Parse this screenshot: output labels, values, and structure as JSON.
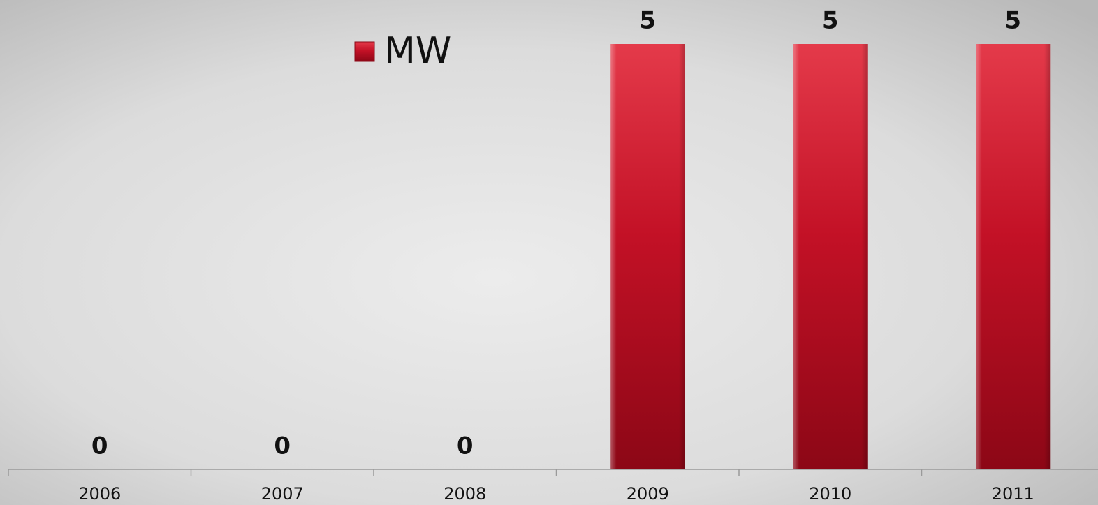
{
  "chart_data": {
    "type": "bar",
    "categories": [
      "2006",
      "2007",
      "2008",
      "2009",
      "2010",
      "2011"
    ],
    "series": [
      {
        "name": "MW",
        "color": "#c8102e",
        "values": [
          0,
          0,
          0,
          5,
          5,
          5
        ]
      }
    ],
    "ylim": [
      0,
      5
    ],
    "legend": "top"
  }
}
